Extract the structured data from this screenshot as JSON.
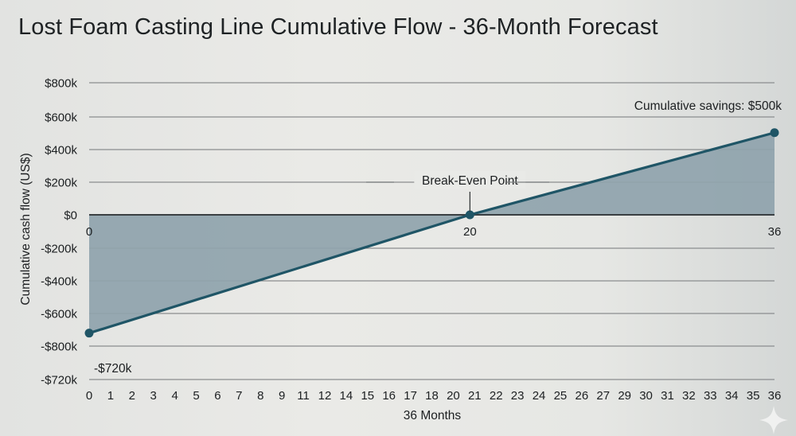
{
  "title": "Lost Foam Casting Line Cumulative Flow - 36-Month Forecast",
  "colors": {
    "line": "#1f5566",
    "area": "#8fa3ad",
    "grid": "#8a8d8e",
    "zero_axis": "#3a3f42",
    "background": "#e6e7e4"
  },
  "chart_data": {
    "type": "area",
    "title": "Lost Foam Casting Line Cumulative Flow - 36-Month Forecast",
    "xlabel": "36 Months",
    "ylabel": "Cumulative cash flow (US$)",
    "x": [
      0,
      20,
      36
    ],
    "series": [
      {
        "name": "Cumulative cash flow",
        "values": [
          -720000,
          0,
          500000
        ]
      }
    ],
    "y_tick_labels": [
      "$800k",
      "$600k",
      "$400k",
      "$200k",
      "$0",
      "-$200k",
      "-$400k",
      "-$600k",
      "-$800k",
      "-$720k"
    ],
    "x_tick_labels": [
      "0",
      "1",
      "2",
      "3",
      "4",
      "5",
      "6",
      "7",
      "8",
      "9",
      "11",
      "12",
      "14",
      "15",
      "16",
      "17",
      "18",
      "20",
      "21",
      "22",
      "23",
      "24",
      "25",
      "26",
      "27",
      "29",
      "30",
      "31",
      "32",
      "33",
      "34",
      "35",
      "36"
    ],
    "zero_axis_labels": [
      "0",
      "20",
      "36"
    ],
    "annotations": [
      {
        "text": "-$720k",
        "x": 0,
        "y": -720000
      },
      {
        "text": "Break-Even Point",
        "x": 20,
        "y": 0
      },
      {
        "text": "Cumulative savings: $500k",
        "x": 36,
        "y": 500000
      }
    ],
    "xlim": [
      0,
      36
    ],
    "grid": true,
    "legend": "none"
  }
}
